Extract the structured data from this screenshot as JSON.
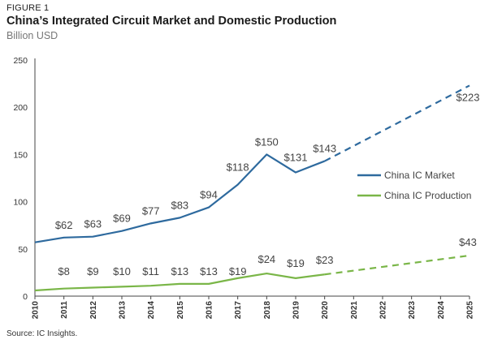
{
  "figure_label": "FIGURE 1",
  "title": "China’s Integrated Circuit Market and Domestic Production",
  "subtitle": "Billion USD",
  "source": "Source: IC Insights.",
  "chart_data": {
    "type": "line",
    "x": [
      "2010",
      "2011",
      "2012",
      "2013",
      "2014",
      "2015",
      "2016",
      "2017",
      "2018",
      "2019",
      "2020",
      "2021",
      "2022",
      "2023",
      "2024",
      "2025"
    ],
    "ylim": [
      0,
      250
    ],
    "yticks": [
      0,
      50,
      100,
      150,
      200,
      250
    ],
    "grid": false,
    "legend_position": "right",
    "series": [
      {
        "name": "China IC Market",
        "color": "#2e6a9e",
        "values": [
          57,
          62,
          63,
          69,
          77,
          83,
          94,
          118,
          150,
          131,
          143,
          null,
          null,
          null,
          null,
          223
        ],
        "labels": [
          null,
          "$62",
          "$63",
          "$69",
          "$77",
          "$83",
          "$94",
          "$118",
          "$150",
          "$131",
          "$143",
          null,
          null,
          null,
          null,
          "$223"
        ],
        "dashed_from": "2020"
      },
      {
        "name": "China IC Production",
        "color": "#7ab648",
        "values": [
          6,
          8,
          9,
          10,
          11,
          13,
          13,
          19,
          24,
          19,
          23,
          null,
          null,
          null,
          null,
          43
        ],
        "labels": [
          null,
          "$8",
          "$9",
          "$10",
          "$11",
          "$13",
          "$13",
          "$19",
          "$24",
          "$19",
          "$23",
          null,
          null,
          null,
          null,
          "$43"
        ],
        "dashed_from": "2020"
      }
    ]
  }
}
